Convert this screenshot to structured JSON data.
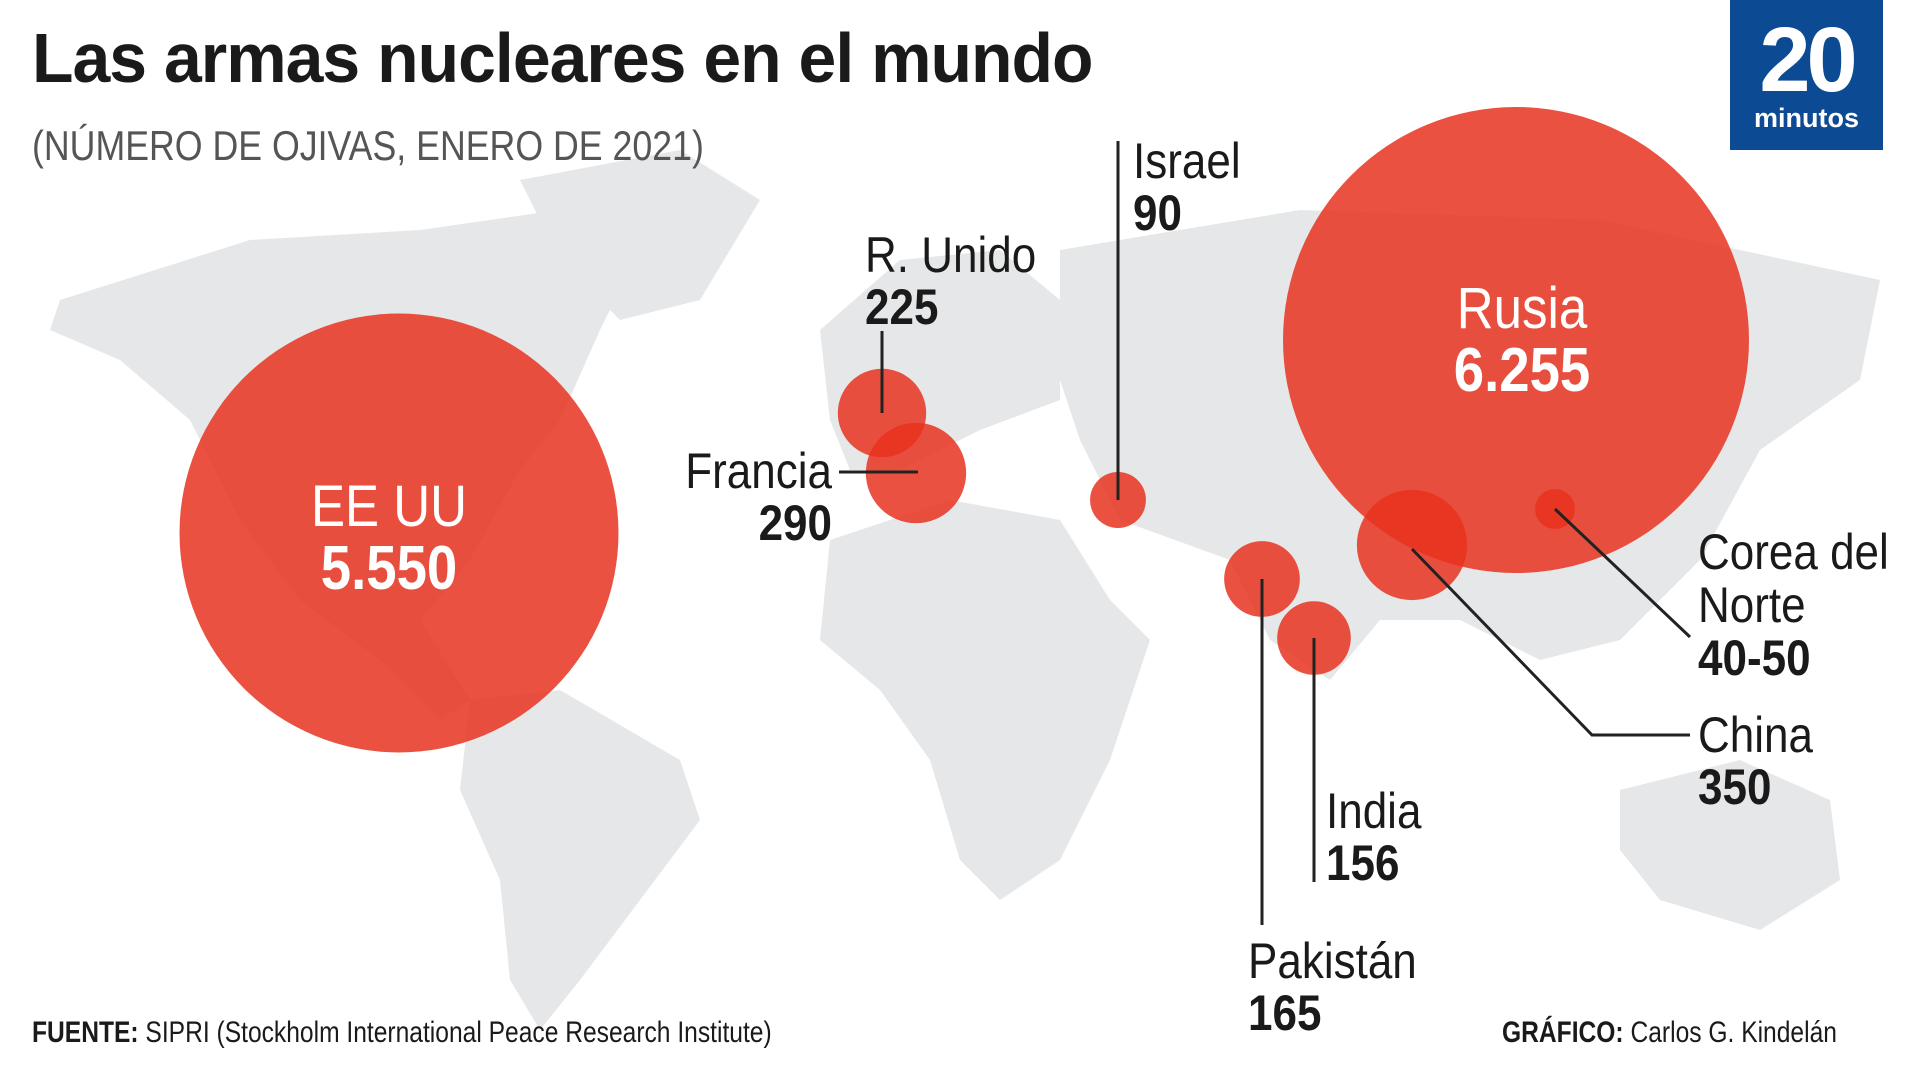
{
  "title": "Las armas nucleares en el mundo",
  "subtitle": "(NÚMERO DE OJIVAS, ENERO DE 2021)",
  "logo": {
    "number": "20",
    "word": "minutos",
    "color": "#0d4a94"
  },
  "chart_data": {
    "type": "bubble-map",
    "title": "Las armas nucleares en el mundo",
    "subtitle": "(NÚMERO DE OJIVAS, ENERO DE 2021)",
    "unit": "ojivas nucleares",
    "bubble_color": "#e8321e",
    "countries": [
      {
        "name": "EE UU",
        "value_label": "5.550",
        "warheads": 5550
      },
      {
        "name": "Rusia",
        "value_label": "6.255",
        "warheads": 6255
      },
      {
        "name": "R. Unido",
        "value_label": "225",
        "warheads": 225
      },
      {
        "name": "Francia",
        "value_label": "290",
        "warheads": 290
      },
      {
        "name": "Israel",
        "value_label": "90",
        "warheads": 90
      },
      {
        "name": "Corea del Norte",
        "value_label": "40-50",
        "warheads": 45
      },
      {
        "name": "China",
        "value_label": "350",
        "warheads": 350
      },
      {
        "name": "India",
        "value_label": "156",
        "warheads": 156
      },
      {
        "name": "Pakistán",
        "value_label": "165",
        "warheads": 165
      }
    ]
  },
  "footer": {
    "source_label": "FUENTE:",
    "source_text": " SIPRI (Stockholm International Peace Research Institute)",
    "credit_label": "GRÁFICO:",
    "credit_text": " Carlos G. Kindelán"
  }
}
